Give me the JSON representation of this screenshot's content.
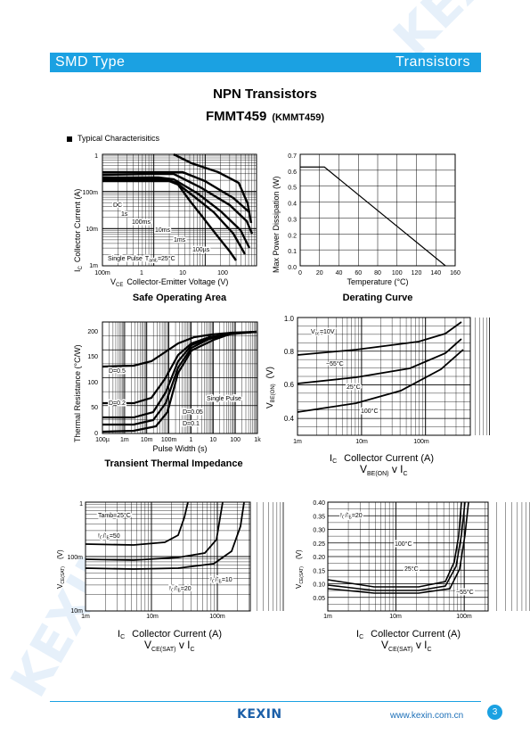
{
  "header": {
    "left": "SMD Type",
    "right": "Transistors"
  },
  "title": "NPN Transistors",
  "part": "FMMT459",
  "alt_part": "(KMMT459)",
  "section": "Typical Characterisitics",
  "watermark": "KEXIN",
  "footer": {
    "logo": "KEXIN",
    "url": "www.kexin.com.cn",
    "page": "3"
  },
  "charts": [
    {
      "caption": "Safe Operating Area",
      "ylabel": "Collector Current (A)",
      "ysym": "I",
      "ysub": "C",
      "xsym": "V",
      "xsub": "CE",
      "xlabel": "Collector-Emitter Voltage (V)",
      "yticks": [
        "1",
        "100m",
        "10m",
        "1m"
      ],
      "xticks": [
        "100m",
        "1",
        "10",
        "100"
      ],
      "annotations": [
        "DC",
        "1s",
        "100ms",
        "10ms",
        "1ms",
        "100µs",
        "Single Pulse",
        "T",
        "amb",
        "=25°C"
      ]
    },
    {
      "caption": "Derating Curve",
      "ylabel": "Max Power Dissipation (W)",
      "xlabel": "Temperature (°C)",
      "yticks": [
        "0.7",
        "0.6",
        "0.5",
        "0.4",
        "0.3",
        "0.2",
        "0.1",
        "0.0"
      ],
      "xticks": [
        "0",
        "20",
        "40",
        "60",
        "80",
        "100",
        "120",
        "140",
        "160"
      ]
    },
    {
      "caption": "Transient Thermal Impedance",
      "ylabel": "Thermal Resistance (°C/W)",
      "xlabel": "Pulse Width (s)",
      "yticks": [
        "200",
        "150",
        "100",
        "50",
        "0"
      ],
      "xticks": [
        "100µ",
        "1m",
        "10m",
        "100m",
        "1",
        "10",
        "100",
        "1k"
      ],
      "annotations": [
        "D=0.5",
        "D=0.2",
        "D=0.1",
        "D=0.05",
        "Single Pulse"
      ]
    },
    {
      "yvalsym": "V",
      "yvalsub": "BE(ON)",
      "yunit": "(V)",
      "xsym": "I",
      "xsub": "C",
      "xlabel": "Collector Current (A)",
      "subtitle": {
        "a": "V",
        "asub": "BE(ON)",
        "mid": " v I",
        "b": "C"
      },
      "yticks": [
        "1.0",
        "0.8",
        "0.6",
        "0.4"
      ],
      "xticks": [
        "1m",
        "10m",
        "100m"
      ],
      "annotations": {
        "vce_a": "V",
        "vce_sub": "ce",
        "vce_b": "=10V",
        "t1": "−55°C",
        "t2": "25°C",
        "t3": "100°C"
      }
    },
    {
      "yvalsym": "V",
      "yvalsub": "CE(SAT)",
      "yunit": "(V)",
      "xsym": "I",
      "xsub": "C",
      "xlabel": "Collector Current (A)",
      "subtitle": {
        "a": "V",
        "asub": "CE(SAT)",
        "mid": " v I",
        "b": "C"
      },
      "yticks": [
        "1",
        "100m",
        "10m"
      ],
      "xticks": [
        "1m",
        "10m",
        "100m"
      ],
      "annotations": {
        "tamb": "Tamb=25°C",
        "r50a": "I",
        "r50sub": "C",
        "r50b": "/I",
        "r50sub2": "B",
        "r50c": "=50",
        "r20": "=20",
        "r10": "=10"
      }
    },
    {
      "yvalsym": "V",
      "yvalsub": "CE(SAT)",
      "yunit": "(V)",
      "xsym": "I",
      "xsub": "C",
      "xlabel": "Collector Current (A)",
      "subtitle": {
        "a": "V",
        "asub": "CE(SAT)",
        "mid": " v I",
        "b": "C"
      },
      "yticks": [
        "0.40",
        "0.35",
        "0.30",
        "0.25",
        "0.20",
        "0.15",
        "0.10",
        "0.05"
      ],
      "xticks": [
        "1m",
        "10m",
        "100m"
      ],
      "annotations": {
        "ratio": "=20",
        "t1": "100°C",
        "t2": "25°C",
        "t3": "−55°C"
      }
    }
  ]
}
